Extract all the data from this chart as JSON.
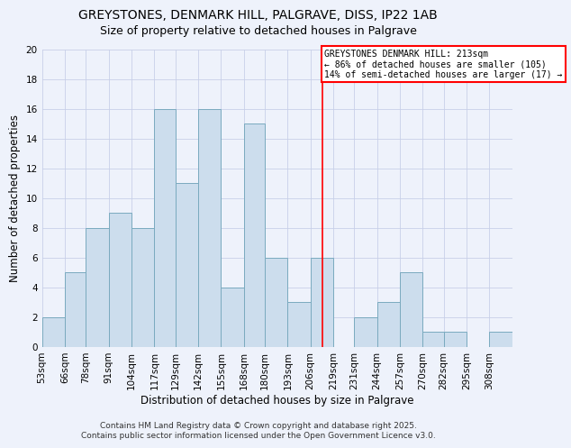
{
  "title": "GREYSTONES, DENMARK HILL, PALGRAVE, DISS, IP22 1AB",
  "subtitle": "Size of property relative to detached houses in Palgrave",
  "xlabel": "Distribution of detached houses by size in Palgrave",
  "ylabel": "Number of detached properties",
  "bar_color": "#ccdded",
  "bar_edge_color": "#7aaabf",
  "bin_labels": [
    "53sqm",
    "66sqm",
    "78sqm",
    "91sqm",
    "104sqm",
    "117sqm",
    "129sqm",
    "142sqm",
    "155sqm",
    "168sqm",
    "180sqm",
    "193sqm",
    "206sqm",
    "219sqm",
    "231sqm",
    "244sqm",
    "257sqm",
    "270sqm",
    "282sqm",
    "295sqm",
    "308sqm"
  ],
  "counts": [
    2,
    5,
    8,
    9,
    8,
    16,
    11,
    16,
    4,
    15,
    6,
    3,
    6,
    0,
    2,
    3,
    5,
    1,
    1,
    0,
    1
  ],
  "vline_x": 213,
  "bin_edges_values": [
    53,
    66,
    78,
    91,
    104,
    117,
    129,
    142,
    155,
    168,
    180,
    193,
    206,
    219,
    231,
    244,
    257,
    270,
    282,
    295,
    308
  ],
  "ylim": [
    0,
    20
  ],
  "yticks": [
    0,
    2,
    4,
    6,
    8,
    10,
    12,
    14,
    16,
    18,
    20
  ],
  "annotation_title": "GREYSTONES DENMARK HILL: 213sqm",
  "annotation_line1": "← 86% of detached houses are smaller (105)",
  "annotation_line2": "14% of semi-detached houses are larger (17) →",
  "annotation_box_color": "white",
  "annotation_box_edge": "red",
  "vline_color": "red",
  "footer1": "Contains HM Land Registry data © Crown copyright and database right 2025.",
  "footer2": "Contains public sector information licensed under the Open Government Licence v3.0.",
  "background_color": "#eef2fb",
  "grid_color": "#c8d0e8",
  "title_fontsize": 10,
  "subtitle_fontsize": 9,
  "axis_label_fontsize": 8.5,
  "tick_fontsize": 7.5,
  "annot_fontsize": 7,
  "footer_fontsize": 6.5
}
